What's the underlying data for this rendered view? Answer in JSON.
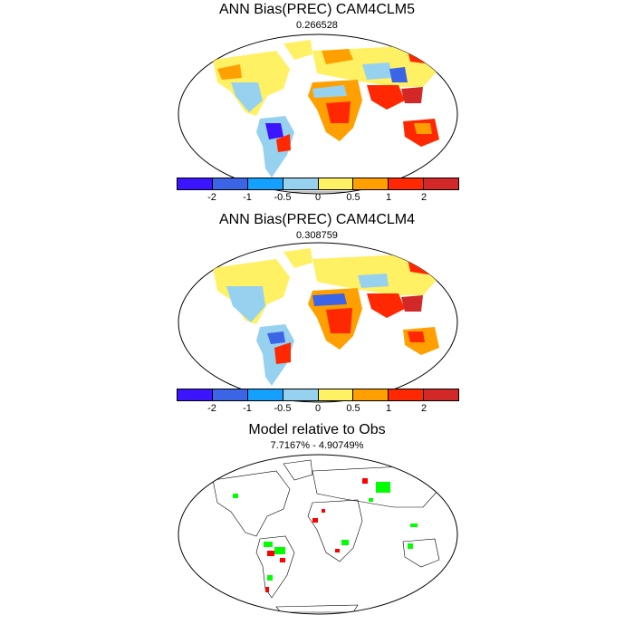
{
  "panels": [
    {
      "title": "ANN Bias(PREC) CAM4CLM5",
      "subtitle": "0.266528",
      "has_colorbar": true
    },
    {
      "title": "ANN Bias(PREC) CAM4CLM4",
      "subtitle": "0.308759",
      "has_colorbar": true
    },
    {
      "title": "Model relative to Obs",
      "subtitle": "7.7167% - 4.90749%",
      "has_colorbar": false
    }
  ],
  "colorbar": {
    "colors": [
      "#3c14ff",
      "#3c64e6",
      "#14a0ff",
      "#96d2f0",
      "#fff064",
      "#ffa000",
      "#ff2800",
      "#d22828"
    ],
    "tick_labels": [
      "-2",
      "-1",
      "-0.5",
      "0",
      "0.5",
      "1",
      "2"
    ]
  },
  "map_legend_colors": {
    "better": "#00ff00",
    "worse": "#ff0000",
    "land_outline": "#000000"
  }
}
